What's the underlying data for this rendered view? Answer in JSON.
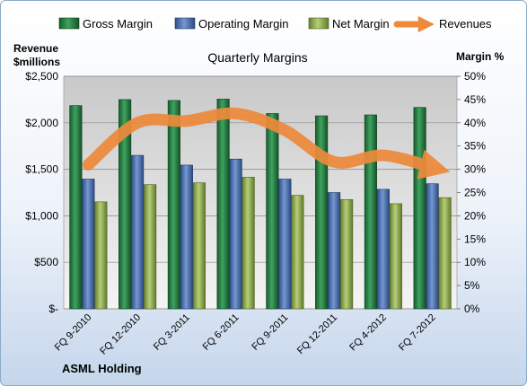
{
  "chart_data": {
    "type": "bar",
    "title": "Quarterly Margins",
    "company": "ASML Holding",
    "left_axis_label": [
      "Revenue",
      "$millions"
    ],
    "right_axis_label": "Margin %",
    "categories": [
      "FQ 9-2010",
      "FQ 12-2010",
      "FQ 3-2011",
      "FQ 6-2011",
      "FQ 9-2011",
      "FQ 12-2011",
      "FQ 4-2012",
      "FQ 7-2012"
    ],
    "left_axis": {
      "min": 0,
      "max": 2500,
      "step": 500,
      "tick_labels": [
        "$-",
        "$500",
        "$1,000",
        "$1,500",
        "$2,000",
        "$2,500"
      ]
    },
    "right_axis": {
      "min": 0,
      "max": 50,
      "step": 5,
      "tick_labels": [
        "0%",
        "5%",
        "10%",
        "15%",
        "20%",
        "25%",
        "30%",
        "35%",
        "40%",
        "45%",
        "50%"
      ]
    },
    "grid": true,
    "legend_position": "top",
    "series": [
      {
        "name": "Gross Margin",
        "type": "bar",
        "axis": "right",
        "values": [
          43.7,
          45.0,
          44.8,
          45.1,
          42.0,
          41.5,
          41.7,
          43.3
        ],
        "color": "#1f7a3f"
      },
      {
        "name": "Operating Margin",
        "type": "bar",
        "axis": "right",
        "values": [
          27.9,
          33.0,
          30.9,
          32.2,
          27.9,
          25.0,
          25.7,
          26.9
        ],
        "color": "#4a6fb0"
      },
      {
        "name": "Net Margin",
        "type": "bar",
        "axis": "right",
        "values": [
          23.0,
          26.7,
          27.1,
          28.3,
          24.4,
          23.5,
          22.6,
          23.9
        ],
        "color": "#8dab4c"
      },
      {
        "name": "Revenues",
        "type": "line",
        "axis": "left",
        "values": [
          1550,
          2000,
          2020,
          2100,
          1920,
          1580,
          1650,
          1520
        ],
        "color": "#ed8a3c"
      }
    ]
  }
}
